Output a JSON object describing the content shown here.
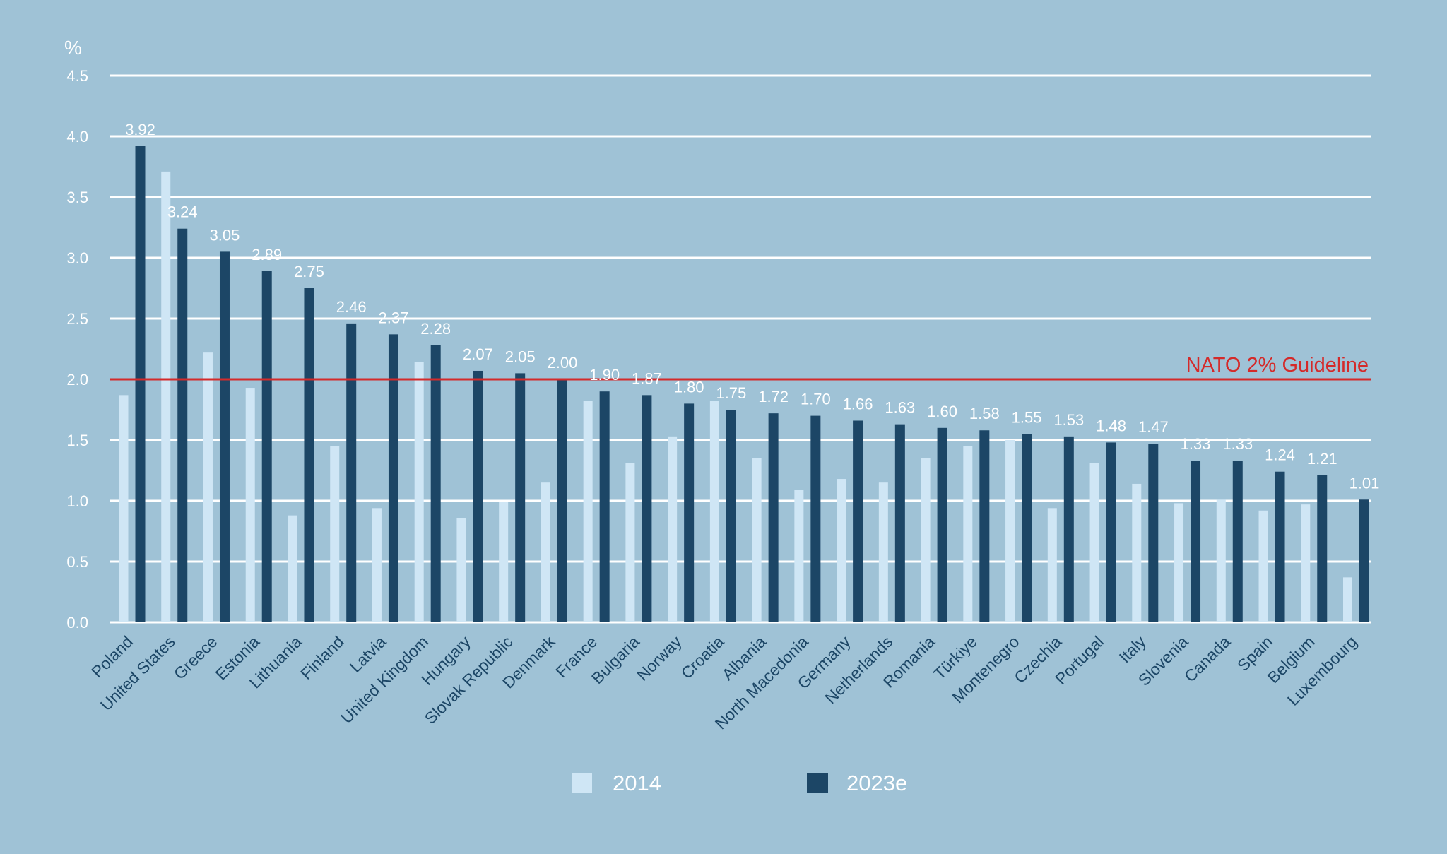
{
  "chart_data": {
    "type": "bar",
    "title": "",
    "ylabel": "%",
    "xlabel": "",
    "ylim": [
      0,
      4.5
    ],
    "yticks": [
      "0.0",
      "0.5",
      "1.0",
      "1.5",
      "2.0",
      "2.5",
      "3.0",
      "3.5",
      "4.0",
      "4.5"
    ],
    "grid": true,
    "legend_position": "bottom",
    "categories": [
      "Poland",
      "United States",
      "Greece",
      "Estonia",
      "Lithuania",
      "Finland",
      "Latvia",
      "United Kingdom",
      "Hungary",
      "Slovak Republic",
      "Denmark",
      "France",
      "Bulgaria",
      "Norway",
      "Croatia",
      "Albania",
      "North Macedonia",
      "Germany",
      "Netherlands",
      "Romania",
      "Türkiye",
      "Montenegro",
      "Czechia",
      "Portugal",
      "Italy",
      "Slovenia",
      "Canada",
      "Spain",
      "Belgium",
      "Luxembourg"
    ],
    "series": [
      {
        "name": "2014",
        "color": "#cfe6f5",
        "values": [
          1.87,
          3.71,
          2.22,
          1.93,
          0.88,
          1.45,
          0.94,
          2.14,
          0.86,
          0.99,
          1.15,
          1.82,
          1.31,
          1.53,
          1.82,
          1.35,
          1.09,
          1.18,
          1.15,
          1.35,
          1.45,
          1.5,
          0.94,
          1.31,
          1.14,
          0.98,
          1.01,
          0.92,
          0.97,
          0.37
        ]
      },
      {
        "name": "2023e",
        "color": "#1c4666",
        "values": [
          3.92,
          3.24,
          3.05,
          2.89,
          2.75,
          2.46,
          2.37,
          2.28,
          2.07,
          2.05,
          2.0,
          1.9,
          1.87,
          1.8,
          1.75,
          1.72,
          1.7,
          1.66,
          1.63,
          1.6,
          1.58,
          1.55,
          1.53,
          1.48,
          1.47,
          1.33,
          1.33,
          1.24,
          1.21,
          1.01
        ],
        "labels": [
          "3.92",
          "3.24",
          "3.05",
          "2.89",
          "2.75",
          "2.46",
          "2.37",
          "2.28",
          "2.07",
          "2.05",
          "2.00",
          "1.90",
          "1.87",
          "1.80",
          "1.75",
          "1.72",
          "1.70",
          "1.66",
          "1.63",
          "1.60",
          "1.58",
          "1.55",
          "1.53",
          "1.48",
          "1.47",
          "1.33",
          "1.33",
          "1.24",
          "1.21",
          "1.01"
        ]
      }
    ],
    "reference_line": {
      "value": 2.0,
      "label": "NATO 2% Guideline",
      "color": "#d42a2a"
    },
    "background_color": "#9fc2d6",
    "grid_color": "#ffffff",
    "axis_label_color": "#ffffff",
    "category_label_color": "#1c4666"
  }
}
